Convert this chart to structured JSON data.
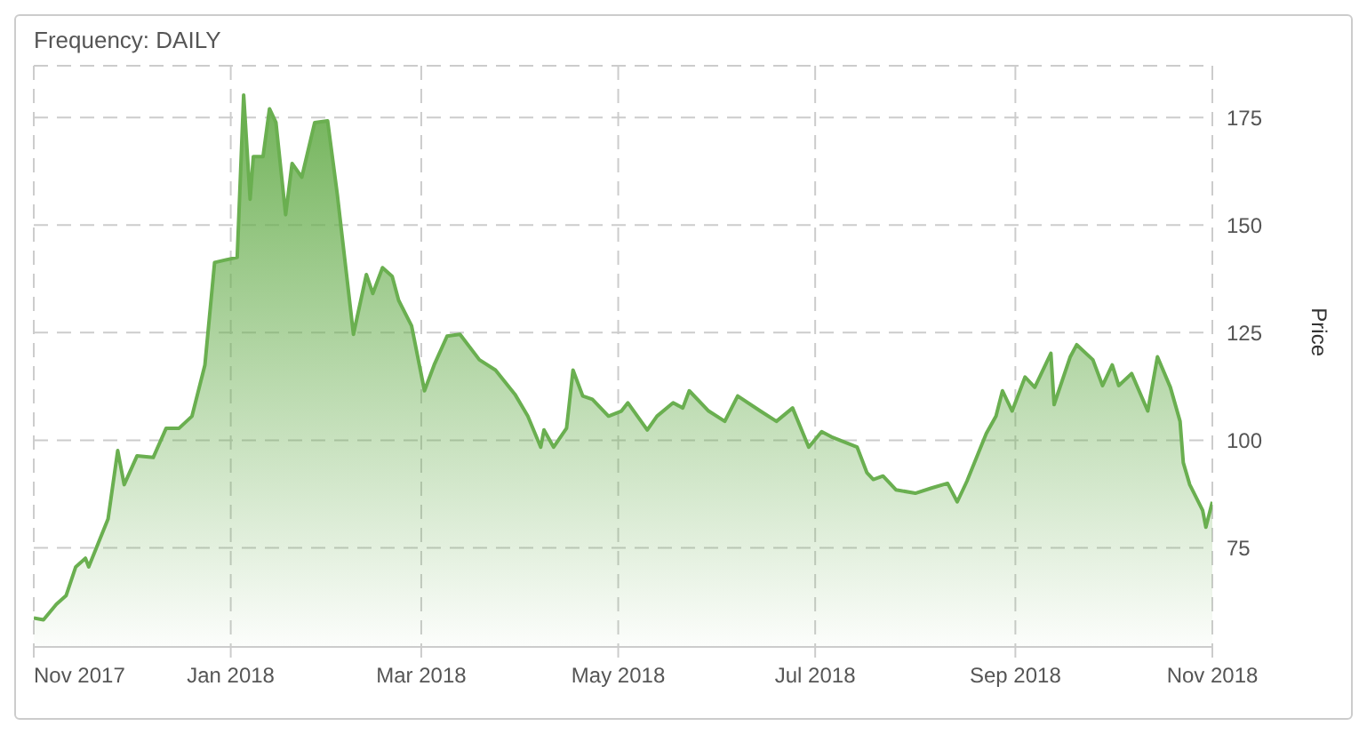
{
  "chart_data": {
    "type": "area",
    "title": "Frequency: DAILY",
    "ylabel": "Price",
    "grid": true,
    "marker": "none",
    "line_style": "solid",
    "xlim": [
      "2017-11-01",
      "2018-11-01"
    ],
    "xticks": [
      {
        "value": "2017-11-01",
        "label": "Nov 2017"
      },
      {
        "value": "2018-01-01",
        "label": "Jan 2018"
      },
      {
        "value": "2018-03-01",
        "label": "Mar 2018"
      },
      {
        "value": "2018-05-01",
        "label": "May 2018"
      },
      {
        "value": "2018-07-01",
        "label": "Jul 2018"
      },
      {
        "value": "2018-09-01",
        "label": "Sep 2018"
      },
      {
        "value": "2018-11-01",
        "label": "Nov 2018"
      }
    ],
    "ylim": [
      52,
      187
    ],
    "yticks": [
      75,
      100,
      125,
      150,
      175
    ],
    "x": [
      "2017-11-01",
      "2017-11-04",
      "2017-11-08",
      "2017-11-11",
      "2017-11-14",
      "2017-11-17",
      "2017-11-18",
      "2017-11-24",
      "2017-11-27",
      "2017-11-29",
      "2017-12-03",
      "2017-12-08",
      "2017-12-12",
      "2017-12-16",
      "2017-12-20",
      "2017-12-24",
      "2017-12-27",
      "2018-01-03",
      "2018-01-05",
      "2018-01-07",
      "2018-01-08",
      "2018-01-11",
      "2018-01-13",
      "2018-01-15",
      "2018-01-18",
      "2018-01-20",
      "2018-01-23",
      "2018-01-27",
      "2018-01-31",
      "2018-02-03",
      "2018-02-08",
      "2018-02-12",
      "2018-02-14",
      "2018-02-17",
      "2018-02-20",
      "2018-02-22",
      "2018-02-26",
      "2018-03-02",
      "2018-03-05",
      "2018-03-09",
      "2018-03-13",
      "2018-03-19",
      "2018-03-24",
      "2018-03-30",
      "2018-04-03",
      "2018-04-07",
      "2018-04-08",
      "2018-04-11",
      "2018-04-15",
      "2018-04-17",
      "2018-04-20",
      "2018-04-23",
      "2018-04-28",
      "2018-05-02",
      "2018-05-04",
      "2018-05-10",
      "2018-05-13",
      "2018-05-18",
      "2018-05-21",
      "2018-05-23",
      "2018-05-29",
      "2018-06-03",
      "2018-06-07",
      "2018-06-14",
      "2018-06-19",
      "2018-06-24",
      "2018-06-29",
      "2018-07-03",
      "2018-07-06",
      "2018-07-14",
      "2018-07-17",
      "2018-07-19",
      "2018-07-22",
      "2018-07-26",
      "2018-08-01",
      "2018-08-06",
      "2018-08-11",
      "2018-08-14",
      "2018-08-17",
      "2018-08-23",
      "2018-08-26",
      "2018-08-28",
      "2018-08-31",
      "2018-09-04",
      "2018-09-07",
      "2018-09-12",
      "2018-09-13",
      "2018-09-18",
      "2018-09-20",
      "2018-09-25",
      "2018-09-28",
      "2018-10-01",
      "2018-10-03",
      "2018-10-07",
      "2018-10-12",
      "2018-10-15",
      "2018-10-19",
      "2018-10-22",
      "2018-10-23",
      "2018-10-25",
      "2018-10-29",
      "2018-10-30",
      "2018-11-01"
    ],
    "series": [
      {
        "color": "#6aaf50",
        "values": [
          58.7,
          58.3,
          61.9,
          63.9,
          70.6,
          72.6,
          70.6,
          81.7,
          97.6,
          89.7,
          96.4,
          96,
          102.8,
          102.8,
          105.6,
          117.5,
          141.3,
          142.5,
          180.2,
          156,
          165.9,
          165.9,
          177,
          173.8,
          152.4,
          164.3,
          161.1,
          173.8,
          174.2,
          157.1,
          124.6,
          138.5,
          134.1,
          140.1,
          138.1,
          132.5,
          126.6,
          111.5,
          117.5,
          124.2,
          124.6,
          118.7,
          116.3,
          110.7,
          105.6,
          98.4,
          102.4,
          98.4,
          102.8,
          116.3,
          110.3,
          109.5,
          105.6,
          106.8,
          108.7,
          102.4,
          105.6,
          108.7,
          107.5,
          111.5,
          106.8,
          104.4,
          110.3,
          106.8,
          104.4,
          107.5,
          98.4,
          102,
          100.8,
          98.4,
          92.5,
          90.9,
          91.7,
          88.5,
          87.7,
          88.9,
          90,
          85.7,
          90.5,
          101.6,
          105.6,
          111.5,
          106.8,
          114.7,
          112.3,
          120.2,
          108.3,
          119.4,
          122.2,
          118.7,
          112.7,
          117.5,
          112.7,
          115.5,
          106.8,
          119.4,
          112.3,
          104.4,
          94.8,
          89.7,
          83.7,
          79.8,
          85.7
        ]
      }
    ]
  }
}
